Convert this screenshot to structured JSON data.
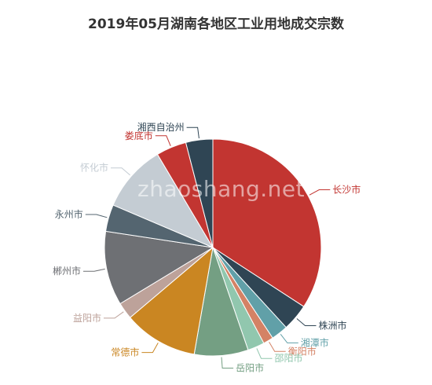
{
  "title": "2019年05月湖南各地区工业用地成交宗数",
  "watermark": "zhaoshang.net",
  "chart_data": {
    "type": "pie",
    "title": "2019年05月湖南各地区工业用地成交宗数",
    "slices": [
      {
        "name": "长沙市",
        "value": 34,
        "color": "#c23531"
      },
      {
        "name": "株洲市",
        "value": 4,
        "color": "#2f4554"
      },
      {
        "name": "湘潭市",
        "value": 2.5,
        "color": "#61a0a8"
      },
      {
        "name": "衡阳市",
        "value": 1.5,
        "color": "#d48265"
      },
      {
        "name": "邵阳市",
        "value": 2.5,
        "color": "#91c7ae"
      },
      {
        "name": "岳阳市",
        "value": 8,
        "color": "#749f83"
      },
      {
        "name": "常德市",
        "value": 11,
        "color": "#ca8622"
      },
      {
        "name": "益阳市",
        "value": 2.5,
        "color": "#bda29a"
      },
      {
        "name": "郴州市",
        "value": 11,
        "color": "#6e7074"
      },
      {
        "name": "永州市",
        "value": 4,
        "color": "#546570"
      },
      {
        "name": "怀化市",
        "value": 10,
        "color": "#c4ccd3"
      },
      {
        "name": "娄底市",
        "value": 4.5,
        "color": "#c23531"
      },
      {
        "name": "湘西自治州",
        "value": 4,
        "color": "#2f4554"
      }
    ]
  }
}
